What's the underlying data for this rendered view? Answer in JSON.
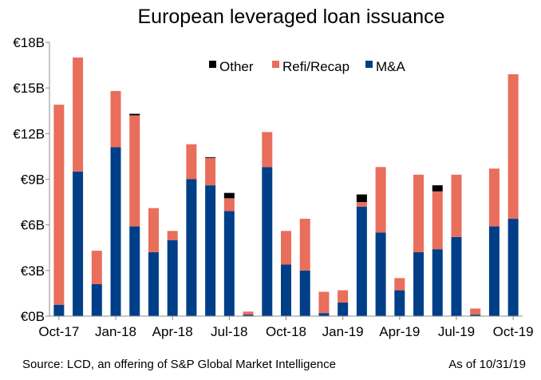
{
  "chart_data": {
    "type": "bar",
    "stacked": true,
    "title": "European leveraged loan issuance",
    "xlabel": "",
    "ylabel": "",
    "ylim": [
      0,
      18
    ],
    "y_ticks": [
      0,
      3,
      6,
      9,
      12,
      15,
      18
    ],
    "y_tick_labels": [
      "€0B",
      "€3B",
      "€6B",
      "€9B",
      "€12B",
      "€15B",
      "€18B"
    ],
    "categories": [
      "Oct-17",
      "Nov-17",
      "Dec-17",
      "Jan-18",
      "Feb-18",
      "Mar-18",
      "Apr-18",
      "May-18",
      "Jun-18",
      "Jul-18",
      "Aug-18",
      "Sep-18",
      "Oct-18",
      "Nov-18",
      "Dec-18",
      "Jan-19",
      "Feb-19",
      "Mar-19",
      "Apr-19",
      "May-19",
      "Jun-19",
      "Jul-19",
      "Aug-19",
      "Sep-19",
      "Oct-19"
    ],
    "x_tick_labels": [
      "Oct-17",
      "Jan-18",
      "Apr-18",
      "Jul-18",
      "Oct-18",
      "Jan-19",
      "Apr-19",
      "Jul-19",
      "Oct-19"
    ],
    "series": [
      {
        "name": "M&A",
        "color": "#003f87",
        "values": [
          0.75,
          9.5,
          2.1,
          11.1,
          5.9,
          4.2,
          5.0,
          9.0,
          8.6,
          6.9,
          0.1,
          9.8,
          3.4,
          3.0,
          0.2,
          0.9,
          7.2,
          5.5,
          1.7,
          4.2,
          4.4,
          5.2,
          0.1,
          5.9,
          6.4
        ]
      },
      {
        "name": "Refi/Recap",
        "color": "#e96e5c",
        "values": [
          13.15,
          7.5,
          2.2,
          3.7,
          7.3,
          2.9,
          0.6,
          2.3,
          1.8,
          0.85,
          0.2,
          2.3,
          2.2,
          3.4,
          1.4,
          0.8,
          0.3,
          4.3,
          0.8,
          5.1,
          3.8,
          4.1,
          0.4,
          3.8,
          9.5
        ]
      },
      {
        "name": "Other",
        "color": "#000000",
        "values": [
          0,
          0,
          0,
          0,
          0.1,
          0,
          0,
          0,
          0.05,
          0.35,
          0,
          0,
          0,
          0,
          0,
          0,
          0.5,
          0,
          0,
          0,
          0.4,
          0,
          0,
          0,
          0
        ]
      }
    ],
    "legend_placement": "top-right",
    "legend_order": [
      "Other",
      "Refi/Recap",
      "M&A"
    ],
    "grid": false
  },
  "footer": {
    "source": "Source: LCD, an offering of S&P Global Market Intelligence",
    "as_of": "As of 10/31/19"
  }
}
